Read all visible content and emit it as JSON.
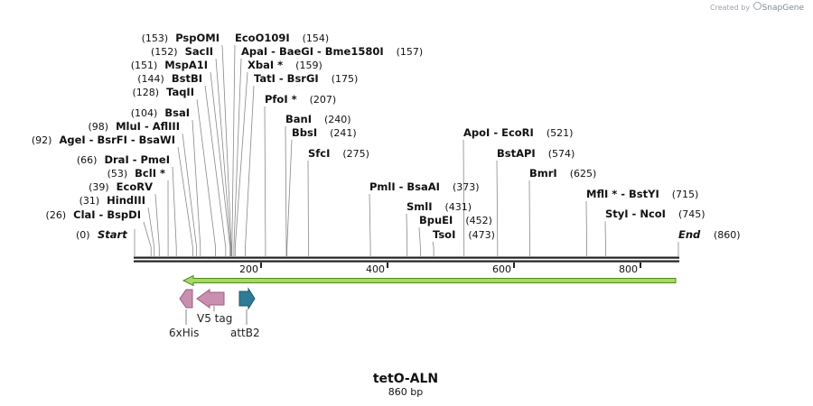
{
  "credit": {
    "prefix": "Created by",
    "brand": "SnapGene"
  },
  "map_title": "tetO-ALN",
  "map_length": "860 bp",
  "ends": {
    "start_label": "Start",
    "start_pos": "(0)",
    "end_label": "End",
    "end_pos": "(860)"
  },
  "ticks": [
    "200",
    "400",
    "600",
    "800"
  ],
  "sites": [
    {
      "label": "PspOMI",
      "pos": "(153)"
    },
    {
      "label": "SacII",
      "pos": "(152)"
    },
    {
      "label": "MspA1I",
      "pos": "(151)"
    },
    {
      "label": "BstBI",
      "pos": "(144)"
    },
    {
      "label": "TaqII",
      "pos": "(128)"
    },
    {
      "label": "BsaI",
      "pos": "(104)"
    },
    {
      "label": "MluI - AflIII",
      "pos": "(98)"
    },
    {
      "label": "AgeI - BsrFI - BsaWI",
      "pos": "(92)"
    },
    {
      "label": "DraI - PmeI",
      "pos": "(66)"
    },
    {
      "label": "BclI *",
      "pos": "(53)"
    },
    {
      "label": "EcoRV",
      "pos": "(39)"
    },
    {
      "label": "HindIII",
      "pos": "(31)"
    },
    {
      "label": "ClaI - BspDI",
      "pos": "(26)"
    },
    {
      "label": "EcoO109I",
      "pos": "(154)"
    },
    {
      "label": "ApaI - BaeGI - Bme1580I",
      "pos": "(157)"
    },
    {
      "label": "XbaI *",
      "pos": "(159)"
    },
    {
      "label": "TatI - BsrGI",
      "pos": "(175)"
    },
    {
      "label": "PfoI *",
      "pos": "(207)"
    },
    {
      "label": "BanI",
      "pos": "(240)"
    },
    {
      "label": "BbsI",
      "pos": "(241)"
    },
    {
      "label": "SfcI",
      "pos": "(275)"
    },
    {
      "label": "PmlI - BsaAI",
      "pos": "(373)"
    },
    {
      "label": "SmlI",
      "pos": "(431)"
    },
    {
      "label": "BpuEI",
      "pos": "(452)"
    },
    {
      "label": "TsoI",
      "pos": "(473)"
    },
    {
      "label": "ApoI - EcoRI",
      "pos": "(521)"
    },
    {
      "label": "BstAPI",
      "pos": "(574)"
    },
    {
      "label": "BmrI",
      "pos": "(625)"
    },
    {
      "label": "MflI * - BstYI",
      "pos": "(715)"
    },
    {
      "label": "StyI - NcoI",
      "pos": "(745)"
    }
  ],
  "features": [
    {
      "label": "6xHis",
      "color": "#c98fb0"
    },
    {
      "label": "V5 tag",
      "color": "#c98fb0"
    },
    {
      "label": "attB2",
      "color": "#2e7c97"
    }
  ],
  "colors": {
    "backbone": "#222222",
    "orf_fill": "#a6d96a",
    "orf_outline": "#4f8a1a"
  }
}
